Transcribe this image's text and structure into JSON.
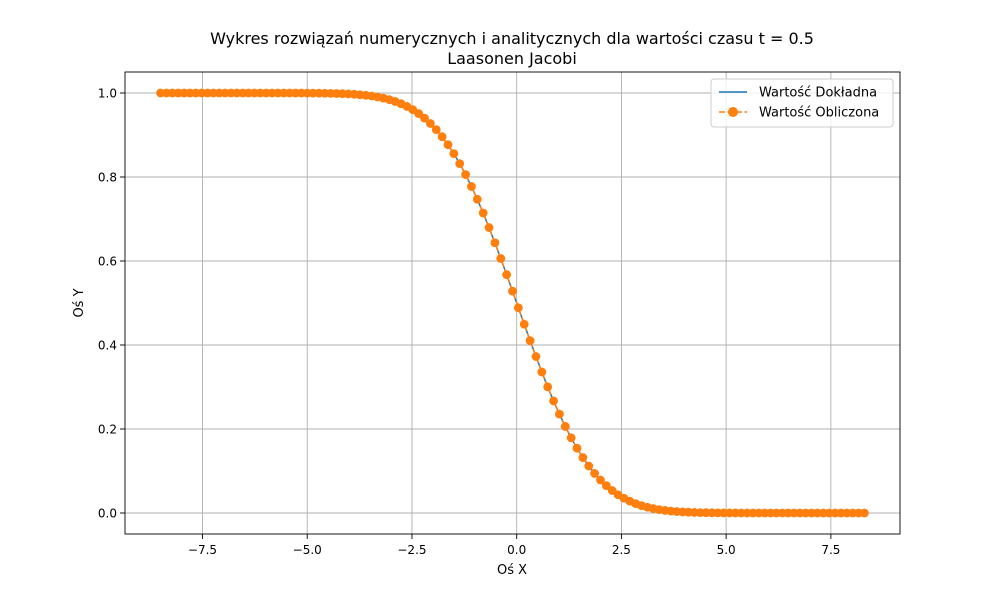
{
  "colors": {
    "exact_line": "#1f77b4",
    "computed_line": "#ff7f0e",
    "grid": "#b0b0b0",
    "background": "#ffffff"
  },
  "chart_data": {
    "type": "line",
    "title": "Wykres rozwiązań numerycznych i analitycznych dla wartości czasu t = 0.5",
    "subtitle": "Laasonen Jacobi",
    "xlabel": "Oś X",
    "ylabel": "Oś Y",
    "xlim": [
      -9.35,
      9.15
    ],
    "ylim": [
      -0.05,
      1.05
    ],
    "xticks": [
      -7.5,
      -5.0,
      -2.5,
      0.0,
      2.5,
      5.0,
      7.5
    ],
    "xtick_labels": [
      "−7.5",
      "−5.0",
      "−2.5",
      "0.0",
      "2.5",
      "5.0",
      "7.5"
    ],
    "yticks": [
      0.0,
      0.2,
      0.4,
      0.6,
      0.8,
      1.0
    ],
    "ytick_labels": [
      "0.0",
      "0.2",
      "0.4",
      "0.6",
      "0.8",
      "1.0"
    ],
    "grid": true,
    "legend_position": "top-right",
    "x_range": [
      -8.5,
      8.3
    ],
    "x_step": 0.14,
    "model": "y = 0.5 * erfc(x / 2), sampled every 0.14 on x from -8.5 to 8.3",
    "series": [
      {
        "name": "Wartość Dokładna",
        "style": "solid-line",
        "color": "#1f77b4"
      },
      {
        "name": "Wartość Obliczona",
        "style": "dashed-line-with-circle-markers",
        "color": "#ff7f0e"
      }
    ]
  }
}
